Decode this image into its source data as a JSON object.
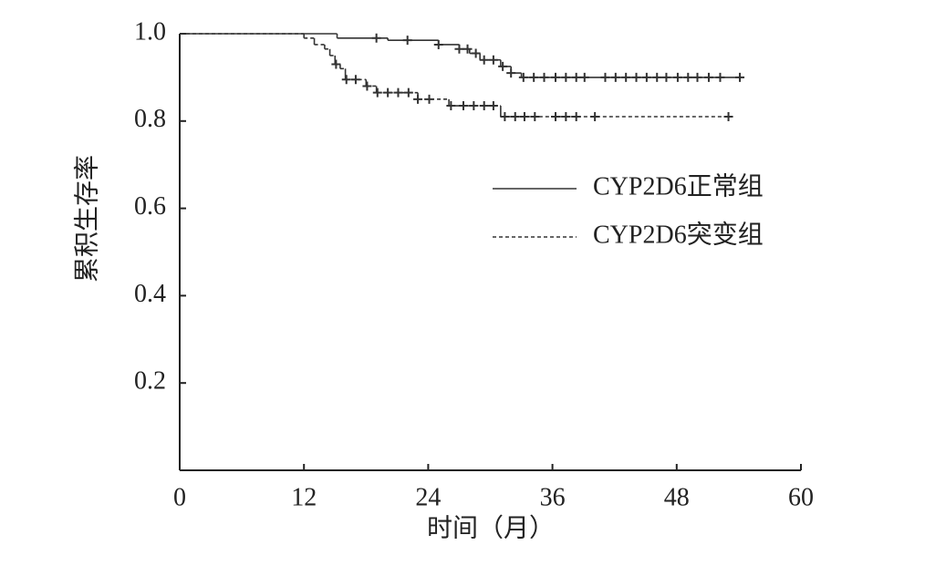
{
  "chart_data": {
    "type": "step",
    "x_label": "时间（月）",
    "y_label": "累积生存率",
    "xlim": [
      0,
      60
    ],
    "xticks": [
      0,
      12,
      24,
      36,
      48,
      60
    ],
    "ylim": [
      0,
      1
    ],
    "yticks": [
      0.2,
      0.4,
      0.6,
      {
        "value": 0.8,
        "label": "0.8"
      },
      {
        "value": 1,
        "label": "1.0"
      }
    ],
    "series": [
      {
        "name": "CYP2D6正常组",
        "color": "#333333",
        "dash": "solid",
        "x": [
          0,
          15.2,
          20.1,
          25,
          27,
          28,
          29,
          31,
          32,
          33,
          54.5
        ],
        "values": [
          1,
          0.99,
          0.985,
          0.975,
          0.965,
          0.955,
          0.94,
          0.925,
          0.91,
          0.9,
          0.9
        ],
        "censored": {
          "x": [
            19,
            22,
            25,
            27,
            27.8,
            28.6,
            29.4,
            30.3,
            31.2,
            32,
            33.2,
            34.2,
            35.2,
            36.3,
            37.3,
            38.3,
            39.1,
            41.1,
            42.1,
            43.1,
            44.1,
            45.1,
            46.1,
            47,
            48.1,
            49.1,
            50,
            51.1,
            52.2,
            54.1
          ],
          "values": [
            0.99,
            0.985,
            0.975,
            0.965,
            0.965,
            0.955,
            0.94,
            0.94,
            0.925,
            0.91,
            0.9,
            0.9,
            0.9,
            0.9,
            0.9,
            0.9,
            0.9,
            0.9,
            0.9,
            0.9,
            0.9,
            0.9,
            0.9,
            0.9,
            0.9,
            0.9,
            0.9,
            0.9,
            0.9,
            0.9
          ]
        }
      },
      {
        "name": "CYP2D6突变组",
        "color": "#333333",
        "dash": "dashed",
        "x": [
          0,
          12,
          13,
          14,
          14.5,
          15,
          15.5,
          16,
          18,
          19,
          23,
          26,
          31,
          53.3
        ],
        "values": [
          1,
          0.99,
          0.975,
          0.965,
          0.95,
          0.93,
          0.92,
          0.895,
          0.88,
          0.865,
          0.85,
          0.835,
          0.81,
          0.81
        ],
        "censored": {
          "x": [
            15.1,
            16.1,
            17,
            18.1,
            19.1,
            20.1,
            21.1,
            22.1,
            23,
            24.1,
            26.2,
            27.4,
            28.4,
            29.4,
            30.3,
            31.4,
            32.4,
            33.3,
            34.3,
            36.3,
            37.3,
            38.3,
            40.1,
            53
          ],
          "values": [
            0.93,
            0.895,
            0.895,
            0.88,
            0.865,
            0.865,
            0.865,
            0.865,
            0.85,
            0.85,
            0.835,
            0.835,
            0.835,
            0.835,
            0.835,
            0.81,
            0.81,
            0.81,
            0.81,
            0.81,
            0.81,
            0.81,
            0.81,
            0.81
          ]
        }
      }
    ]
  }
}
